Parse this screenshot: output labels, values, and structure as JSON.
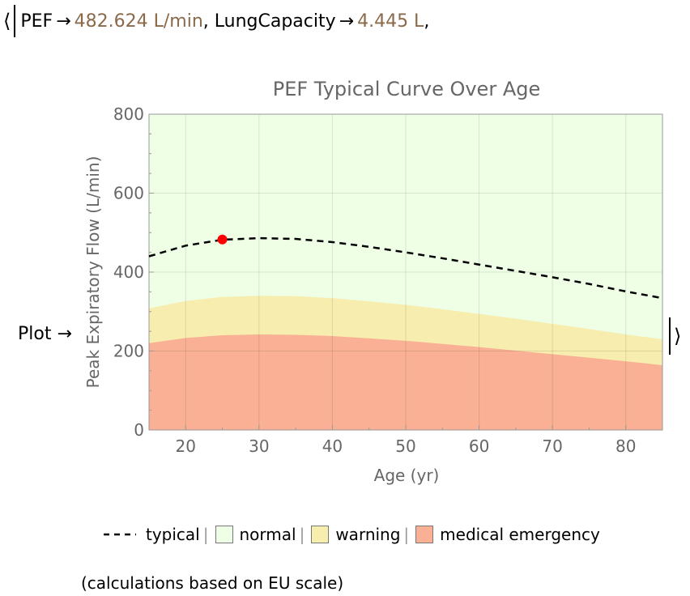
{
  "header": {
    "open_bracket": "⟨",
    "arrow": "→",
    "items": [
      {
        "key": "PEF",
        "value": "482.624 L/min"
      },
      {
        "key": "LungCapacity",
        "value": "4.445 L"
      }
    ],
    "trailing": ","
  },
  "plot_key": "Plot →",
  "close_bracket": "⟩",
  "chart_data": {
    "type": "area",
    "title": "PEF Typical Curve Over Age",
    "xlabel": "Age (yr)",
    "ylabel": "Peak Expiratory Flow  (L/min)",
    "xlim": [
      15,
      85
    ],
    "ylim": [
      0,
      800
    ],
    "x_ticks": [
      20,
      30,
      40,
      50,
      60,
      70,
      80
    ],
    "y_ticks": [
      0,
      200,
      400,
      600,
      800
    ],
    "grid": true,
    "legend_position": "bottom",
    "x": [
      15,
      20,
      25,
      30,
      35,
      40,
      45,
      50,
      55,
      60,
      65,
      70,
      75,
      80,
      85
    ],
    "series": [
      {
        "name": "typical",
        "style": "dashed",
        "color": "#000000",
        "values": [
          440,
          467,
          482,
          486,
          484,
          476,
          464,
          450,
          435,
          419,
          403,
          387,
          370,
          351,
          334
        ]
      },
      {
        "name": "normal",
        "style": "fill",
        "color": "#eeffe6",
        "values": [
          800,
          800,
          800,
          800,
          800,
          800,
          800,
          800,
          800,
          800,
          800,
          800,
          800,
          800,
          800
        ]
      },
      {
        "name": "warning",
        "style": "fill",
        "color": "#f7edae",
        "values": [
          308,
          327,
          337,
          340,
          339,
          334,
          326,
          317,
          306,
          294,
          282,
          269,
          256,
          242,
          230
        ]
      },
      {
        "name": "medical emergency",
        "style": "fill",
        "color": "#f9b094",
        "values": [
          220,
          233,
          240,
          242,
          241,
          238,
          232,
          226,
          218,
          210,
          201,
          192,
          183,
          174,
          164
        ]
      }
    ],
    "highlight_point": {
      "x": 25,
      "y": 482.624,
      "color": "#ff0000"
    }
  },
  "legend": {
    "separator": "|",
    "items": [
      {
        "label": "typical",
        "kind": "dash",
        "color": "#000000"
      },
      {
        "label": "normal",
        "kind": "swatch",
        "color": "#eeffe6"
      },
      {
        "label": "warning",
        "kind": "swatch",
        "color": "#f7edae"
      },
      {
        "label": "medical emergency",
        "kind": "swatch",
        "color": "#f9b094"
      }
    ]
  },
  "footnote": "(calculations based on EU scale)"
}
